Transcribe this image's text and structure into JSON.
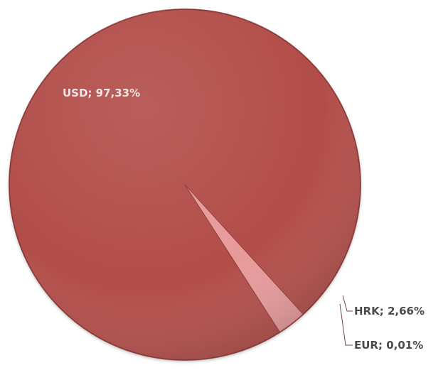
{
  "colors": {
    "background": "#ffffff",
    "slices": [
      "#b24d4a",
      "#e79a9a",
      "#c9a09f"
    ],
    "leader_line": "#7a4544",
    "inner_label": "#f3e6e6",
    "outer_label": "#4b4b4b"
  },
  "chart_data": {
    "type": "pie",
    "title": "",
    "labels": [
      "USD",
      "HRK",
      "EUR"
    ],
    "values": [
      97.33,
      2.66,
      0.01
    ],
    "data_labels": [
      "USD; 97,33%",
      "HRK; 2,66%",
      "EUR; 0,01%"
    ],
    "label_position": [
      "inside",
      "outside",
      "outside"
    ],
    "style": "3d-shaded",
    "legend": "none"
  }
}
